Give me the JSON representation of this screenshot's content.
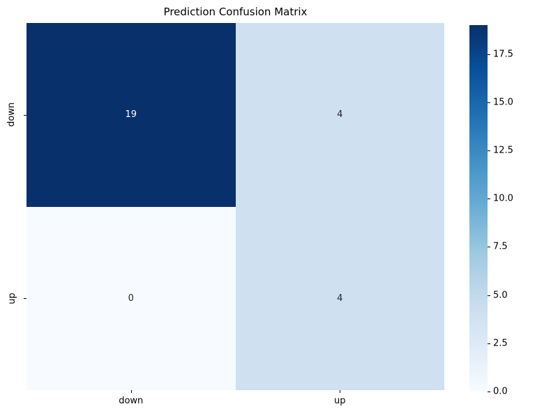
{
  "title": "Prediction Confusion Matrix",
  "chart_data": {
    "type": "heatmap",
    "title": "Prediction Confusion Matrix",
    "x_categories": [
      "down",
      "up"
    ],
    "y_categories": [
      "down",
      "up"
    ],
    "values": [
      [
        19,
        4
      ],
      [
        0,
        4
      ]
    ],
    "colormap": "Blues",
    "vmin": 0,
    "vmax": 19,
    "cell_colors": [
      [
        "#08306b",
        "#cfe0f1"
      ],
      [
        "#f7fbff",
        "#cfe0f1"
      ]
    ],
    "cell_text_colors": [
      [
        "#ffffff",
        "#262626"
      ],
      [
        "#262626",
        "#262626"
      ]
    ],
    "colorbar_ticks": [
      {
        "value": 0,
        "label": "0.0"
      },
      {
        "value": 2.5,
        "label": "2.5"
      },
      {
        "value": 5,
        "label": "5.0"
      },
      {
        "value": 7.5,
        "label": "7.5"
      },
      {
        "value": 10,
        "label": "10.0"
      },
      {
        "value": 12.5,
        "label": "12.5"
      },
      {
        "value": 15,
        "label": "15.0"
      },
      {
        "value": 17.5,
        "label": "17.5"
      }
    ],
    "colormap_stops": [
      {
        "pos": 0.0,
        "color": "#f7fbff"
      },
      {
        "pos": 0.125,
        "color": "#deebf7"
      },
      {
        "pos": 0.25,
        "color": "#c6dbef"
      },
      {
        "pos": 0.375,
        "color": "#9ecae1"
      },
      {
        "pos": 0.5,
        "color": "#6baed6"
      },
      {
        "pos": 0.625,
        "color": "#4292c6"
      },
      {
        "pos": 0.75,
        "color": "#2171b5"
      },
      {
        "pos": 0.875,
        "color": "#08519c"
      },
      {
        "pos": 1.0,
        "color": "#08306b"
      }
    ],
    "legend_position": "right-colorbar",
    "grid": false
  }
}
